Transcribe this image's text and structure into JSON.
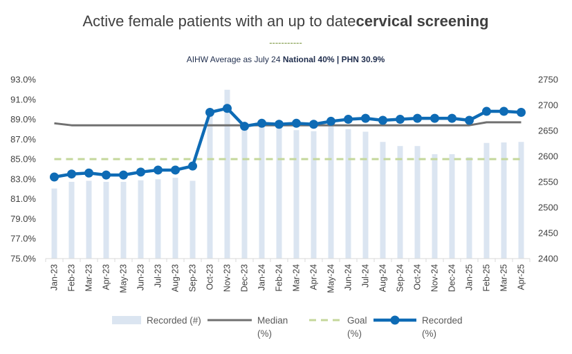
{
  "chart_data": {
    "type": "bar+line",
    "title": {
      "part1": "Active female patients with an up to date",
      "part2": "cervical screening"
    },
    "divider": "-----------",
    "subtitle": {
      "text": "AIHW Average as July 24 ",
      "national": "National 40%",
      "separator": " | ",
      "phn": "PHN 30.9%"
    },
    "categories": [
      "Jan-23",
      "Feb-23",
      "Mar-23",
      "Apr-23",
      "May-23",
      "Jun-23",
      "Jul-23",
      "Aug-23",
      "Sep-23",
      "Oct-23",
      "Nov-23",
      "Dec-23",
      "Jan-24",
      "Feb-24",
      "Mar-24",
      "Apr-24",
      "May-24",
      "Jun-24",
      "Jul-24",
      "Aug-24",
      "Sep-24",
      "Oct-24",
      "Nov-24",
      "Dec-24",
      "Jan-25",
      "Feb-25",
      "Mar-25",
      "Apr-25"
    ],
    "y_left": {
      "min": 75.0,
      "max": 93.0,
      "ticks": [
        "93.0%",
        "91.0%",
        "89.0%",
        "87.0%",
        "85.0%",
        "83.0%",
        "81.0%",
        "79.0%",
        "77.0%",
        "75.0%"
      ]
    },
    "y_right": {
      "min": 2400,
      "max": 2750,
      "ticks": [
        "2750",
        "2700",
        "2650",
        "2600",
        "2550",
        "2500",
        "2450",
        "2400"
      ]
    },
    "series": [
      {
        "name": "Recorded (#)",
        "type": "bar",
        "axis": "right",
        "color": "#dbe5f1",
        "values": [
          2537,
          2550,
          2552,
          2550,
          2550,
          2553,
          2555,
          2558,
          2552,
          2688,
          2730,
          2663,
          2663,
          2663,
          2651,
          2649,
          2661,
          2653,
          2648,
          2628,
          2620,
          2620,
          2604,
          2604,
          2598,
          2626,
          2627,
          2628
        ]
      },
      {
        "name": "Median (%)",
        "type": "line",
        "axis": "left",
        "color": "#707070",
        "values": [
          88.6,
          88.4,
          88.4,
          88.4,
          88.4,
          88.4,
          88.4,
          88.4,
          88.4,
          88.4,
          88.4,
          88.4,
          88.4,
          88.4,
          88.4,
          88.4,
          88.4,
          88.4,
          88.4,
          88.4,
          88.4,
          88.4,
          88.4,
          88.4,
          88.4,
          88.7,
          88.7,
          88.7
        ]
      },
      {
        "name": "Goal (%)",
        "type": "line",
        "axis": "left",
        "dashed": true,
        "color": "#c4d79b",
        "values": [
          85.0,
          85.0,
          85.0,
          85.0,
          85.0,
          85.0,
          85.0,
          85.0,
          85.0,
          85.0,
          85.0,
          85.0,
          85.0,
          85.0,
          85.0,
          85.0,
          85.0,
          85.0,
          85.0,
          85.0,
          85.0,
          85.0,
          85.0,
          85.0,
          85.0,
          85.0,
          85.0,
          85.0
        ]
      },
      {
        "name": "Recorded (%)",
        "type": "line",
        "axis": "left",
        "markers": true,
        "color": "#0e6bb5",
        "values": [
          83.2,
          83.5,
          83.6,
          83.4,
          83.4,
          83.7,
          83.9,
          83.9,
          84.3,
          89.7,
          90.1,
          88.3,
          88.6,
          88.5,
          88.6,
          88.5,
          88.8,
          89.0,
          89.1,
          88.9,
          89.0,
          89.1,
          89.1,
          89.1,
          88.9,
          89.8,
          89.8,
          89.7
        ]
      }
    ],
    "legend": {
      "position": "bottom",
      "items": [
        {
          "line1": "Recorded (#)",
          "line2": ""
        },
        {
          "line1": "Median",
          "line2": "(%)"
        },
        {
          "line1": "Goal",
          "line2": "(%)"
        },
        {
          "line1": "Recorded",
          "line2": "(%)"
        }
      ]
    },
    "grid": false
  }
}
